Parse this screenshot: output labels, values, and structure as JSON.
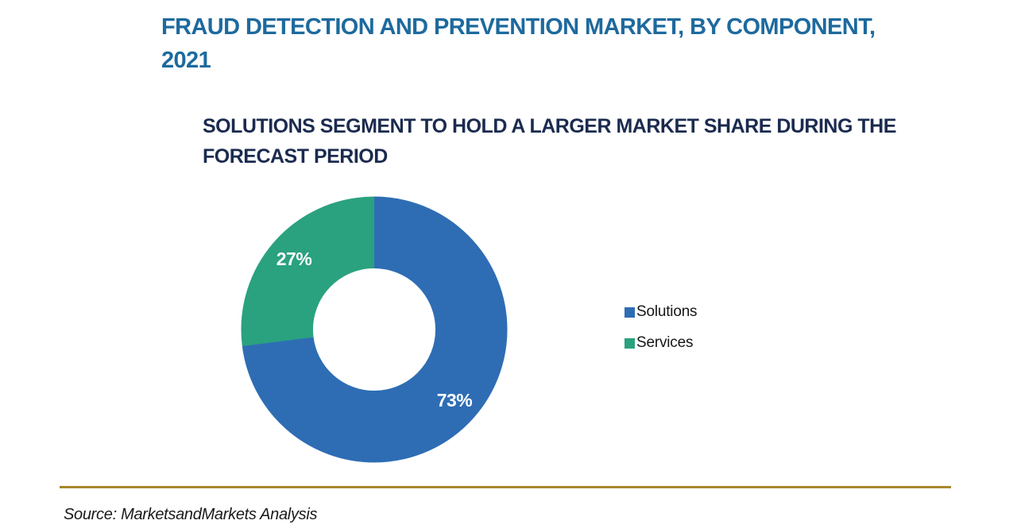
{
  "title": {
    "text": "FRAUD DETECTION AND PREVENTION MARKET, BY COMPONENT, 2021",
    "lines": [
      "FRAUD DETECTION AND PREVENTION MARKET, BY COMPONENT,",
      "2021"
    ],
    "color": "#1d6a9e"
  },
  "subtitle": {
    "text": "SOLUTIONS SEGMENT TO HOLD A LARGER MARKET SHARE DURING THE FORECAST PERIOD",
    "lines": [
      "SOLUTIONS SEGMENT TO HOLD A LARGER MARKET SHARE DURING THE",
      "FORECAST PERIOD"
    ],
    "color": "#1b2b4f"
  },
  "chart_data": {
    "type": "pie",
    "style": "donut",
    "title": "FRAUD DETECTION AND PREVENTION MARKET, BY COMPONENT, 2021",
    "series": [
      {
        "name": "Solutions",
        "value": 73,
        "label": "73%",
        "color": "#2e6db4"
      },
      {
        "name": "Services",
        "value": 27,
        "label": "27%",
        "color": "#2aa17f"
      }
    ],
    "start_angle_deg": 0,
    "direction": "clockwise",
    "inner_radius_ratio": 0.46,
    "data_label_color": "#ffffff",
    "legend_position": "right"
  },
  "footer": {
    "divider_color": "#a8872c",
    "source_text": "Source: MarketsandMarkets Analysis"
  }
}
